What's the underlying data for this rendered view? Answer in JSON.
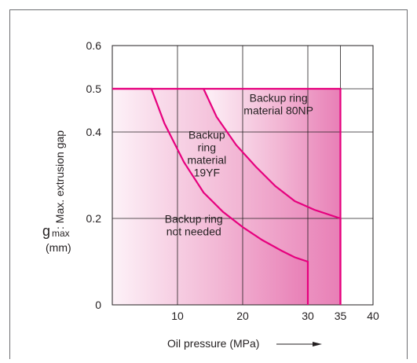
{
  "chart_data": {
    "type": "area",
    "xlabel": "Oil pressure (MPa)",
    "ylabel_symbol": "g",
    "ylabel_subscript": "max",
    "ylabel_unit": "(mm)",
    "ylabel_text": ": Max. extrusion gap",
    "xlim": [
      0,
      40
    ],
    "ylim": [
      0,
      0.6
    ],
    "x_ticks": [
      10,
      20,
      30,
      35,
      40
    ],
    "y_ticks": [
      0,
      0.2,
      0.4,
      0.5,
      0.6
    ],
    "y_tick_labels": [
      "0",
      "0.2",
      "0.4",
      "0.5",
      "0.6"
    ],
    "grid": true,
    "colors": {
      "accent": "#e6007e",
      "fill_dark": "#e67fb4",
      "fill_light": "#fdf0f6",
      "grid": "#231f20"
    },
    "series": [
      {
        "name": "Backup ring not needed",
        "boundary": [
          [
            0,
            0.5
          ],
          [
            6,
            0.5
          ],
          [
            8,
            0.42
          ],
          [
            11,
            0.33
          ],
          [
            14,
            0.26
          ],
          [
            17,
            0.215
          ],
          [
            20,
            0.18
          ],
          [
            23,
            0.15
          ],
          [
            26,
            0.125
          ],
          [
            28,
            0.11
          ],
          [
            30,
            0.1
          ],
          [
            30,
            0
          ]
        ]
      },
      {
        "name": "Backup ring material 19YF",
        "boundary": [
          [
            14,
            0.5
          ],
          [
            16,
            0.435
          ],
          [
            19,
            0.37
          ],
          [
            22,
            0.32
          ],
          [
            25,
            0.275
          ],
          [
            28,
            0.24
          ],
          [
            31,
            0.22
          ],
          [
            33,
            0.21
          ],
          [
            35,
            0.2
          ],
          [
            35,
            0
          ]
        ]
      },
      {
        "name": "Backup ring material 80NP",
        "boundary": [
          [
            35,
            0.5
          ],
          [
            35,
            0
          ]
        ]
      }
    ],
    "annotations": [
      {
        "id": "ann-80np",
        "lines": [
          "Backup ring",
          "material 80NP"
        ],
        "x": 25.5,
        "y": 0.47
      },
      {
        "id": "ann-19yf",
        "lines": [
          "Backup",
          "ring",
          "material",
          "19YF"
        ],
        "x": 14.5,
        "y": 0.385
      },
      {
        "id": "ann-none",
        "lines": [
          "Backup ring",
          "not needed"
        ],
        "x": 12.5,
        "y": 0.19
      }
    ]
  }
}
